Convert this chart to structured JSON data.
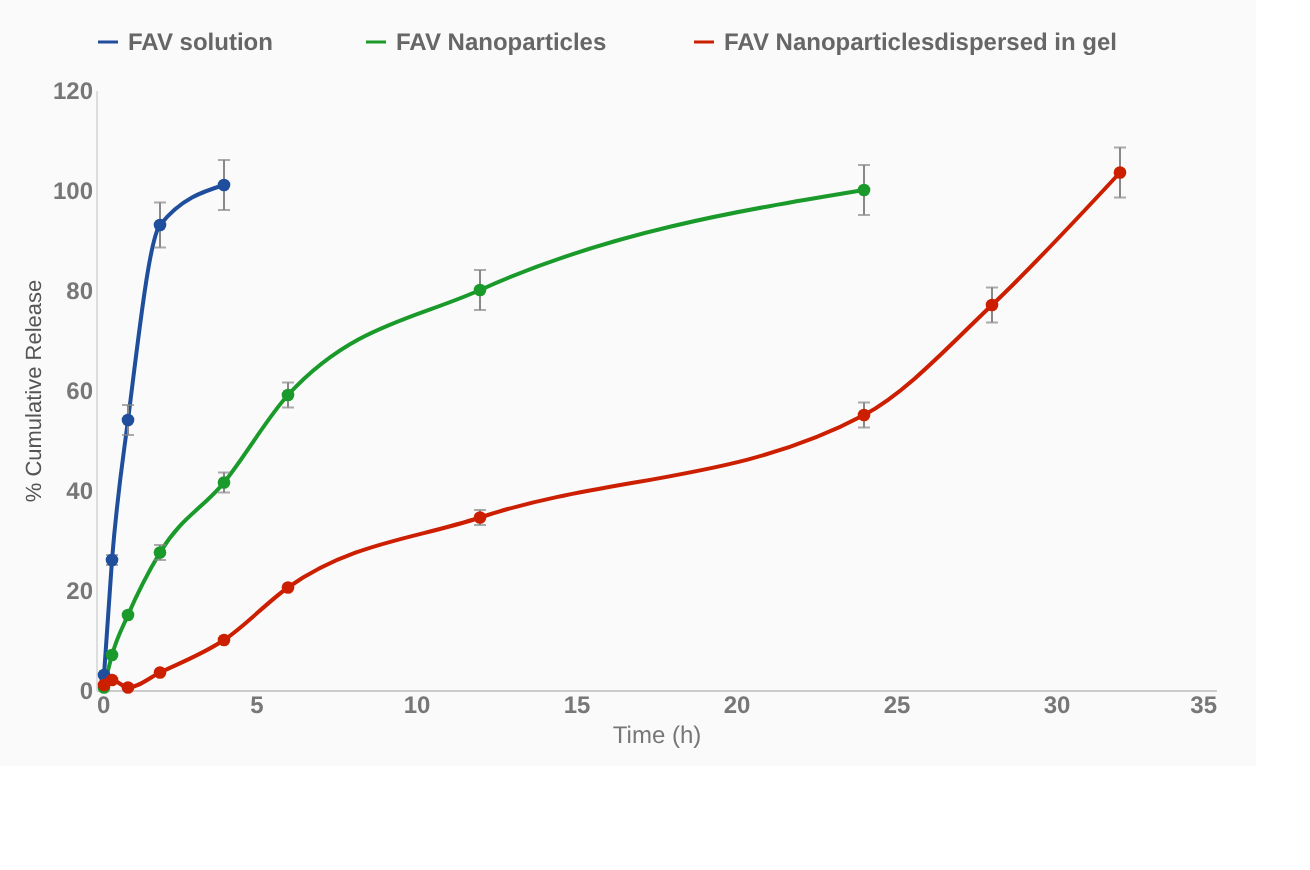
{
  "chart_data": {
    "type": "line",
    "xlabel": "Time (h)",
    "ylabel": "% Cumulative Release",
    "xlim": [
      0,
      35
    ],
    "xticks": [
      0,
      5,
      10,
      15,
      20,
      25,
      30,
      35
    ],
    "ylim": [
      0,
      120
    ],
    "yticks": [
      0,
      20,
      40,
      60,
      80,
      100,
      120
    ],
    "grid": false,
    "legend": "top",
    "marker": "circle",
    "line_style": "solid",
    "series": [
      {
        "name": "FAV  solution",
        "color": "#1f4e9c",
        "x": [
          0.25,
          0.5,
          1,
          2,
          4
        ],
        "values": [
          3,
          26,
          54,
          93,
          101
        ],
        "errors": [
          null,
          1,
          3,
          4.5,
          5
        ]
      },
      {
        "name": "FAV Nanoparticles",
        "color": "#1a9a2a",
        "x": [
          0.25,
          0.5,
          1,
          2,
          4,
          6,
          12,
          24
        ],
        "values": [
          0.5,
          7,
          15,
          27.5,
          41.5,
          59,
          80,
          100
        ],
        "errors": [
          null,
          null,
          null,
          1.5,
          2,
          2.5,
          4,
          5
        ]
      },
      {
        "name": "FAV Nanoparticlesdispersed in gel",
        "color": "#cc1f00",
        "x": [
          0.25,
          0.5,
          1,
          2,
          4,
          6,
          12,
          24,
          28,
          32
        ],
        "values": [
          1,
          2,
          0.5,
          3.5,
          10,
          20.5,
          34.5,
          55,
          77,
          103.5
        ],
        "errors": [
          null,
          null,
          null,
          null,
          null,
          null,
          1.5,
          2.5,
          3.5,
          5
        ]
      }
    ]
  }
}
